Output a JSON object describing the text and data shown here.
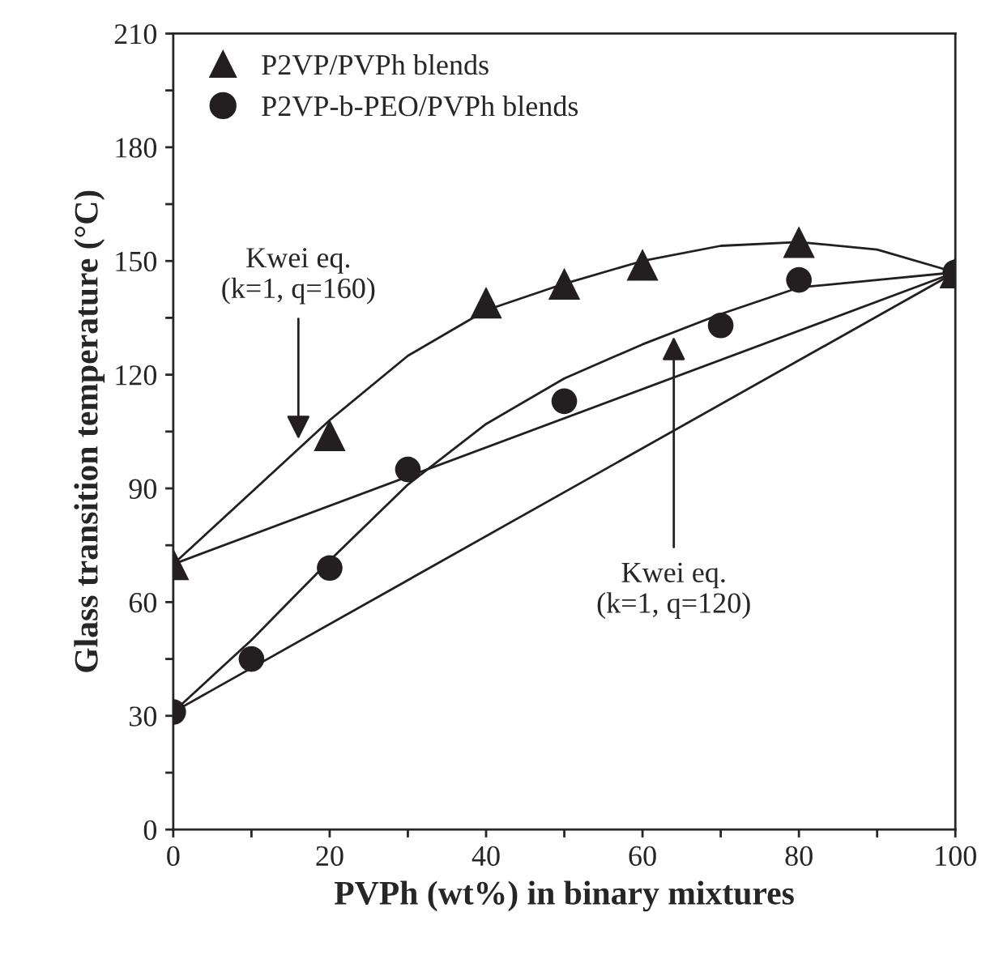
{
  "chart_data": {
    "type": "scatter",
    "xlabel": "PVPh (wt%) in binary mixtures",
    "ylabel": "Glass transition temperature (°C)",
    "xlim": [
      0,
      100
    ],
    "ylim": [
      0,
      210
    ],
    "xticks": [
      0,
      {
        "value": 10,
        "label": null
      },
      20,
      {
        "value": 30,
        "label": null
      },
      40,
      {
        "value": 50,
        "label": null
      },
      60,
      {
        "value": 70,
        "label": null
      },
      80,
      {
        "value": 90,
        "label": null
      },
      100
    ],
    "yticks": [
      0,
      {
        "value": 15,
        "label": null
      },
      30,
      {
        "value": 45,
        "label": null
      },
      60,
      {
        "value": 75,
        "label": null
      },
      90,
      {
        "value": 105,
        "label": null
      },
      120,
      {
        "value": 135,
        "label": null
      },
      150,
      {
        "value": 165,
        "label": null
      },
      180,
      {
        "value": 195,
        "label": null
      },
      210
    ],
    "grid": false,
    "legend": "top left",
    "series": [
      {
        "name": "P2VP/PVPh blends",
        "marker": "triangle",
        "color": "#231f20",
        "x": [
          0,
          20,
          40,
          50,
          60,
          80,
          100
        ],
        "values": [
          70,
          104,
          139,
          144,
          149,
          155,
          147
        ]
      },
      {
        "name": "P2VP-b-PEO/PVPh blends",
        "marker": "circle",
        "color": "#231f20",
        "x": [
          0,
          10,
          20,
          30,
          50,
          70,
          80,
          100
        ],
        "values": [
          31,
          45,
          69,
          95,
          113,
          133,
          145,
          147
        ]
      },
      {
        "type": "line",
        "marker": "none",
        "line_style": "solid",
        "color": "#231f20",
        "x": [
          0,
          10,
          20,
          30,
          40,
          50,
          60,
          70,
          80,
          90,
          100
        ],
        "values": [
          70,
          89,
          108,
          125,
          137,
          144,
          150,
          154,
          155,
          153,
          147
        ]
      },
      {
        "type": "line",
        "marker": "none",
        "line_style": "solid",
        "color": "#231f20",
        "x": [
          0,
          10,
          20,
          30,
          40,
          50,
          60,
          70,
          80,
          90,
          100
        ],
        "values": [
          31,
          50,
          71,
          91,
          107,
          119,
          128,
          136,
          143,
          145,
          147
        ]
      },
      {
        "type": "line",
        "marker": "none",
        "line_style": "solid",
        "color": "#231f20",
        "x": [
          0,
          100
        ],
        "values": [
          70,
          147
        ]
      },
      {
        "type": "line",
        "marker": "none",
        "line_style": "solid",
        "color": "#231f20",
        "x": [
          0,
          100
        ],
        "values": [
          31,
          147
        ]
      }
    ],
    "annotations": [
      {
        "text": "Kwei eq.\n(k=1, q=160)",
        "x": 16,
        "y": 103
      },
      {
        "text": "Kwei eq.\n(k=1, q=120)",
        "x": 64,
        "y": 130
      }
    ]
  }
}
